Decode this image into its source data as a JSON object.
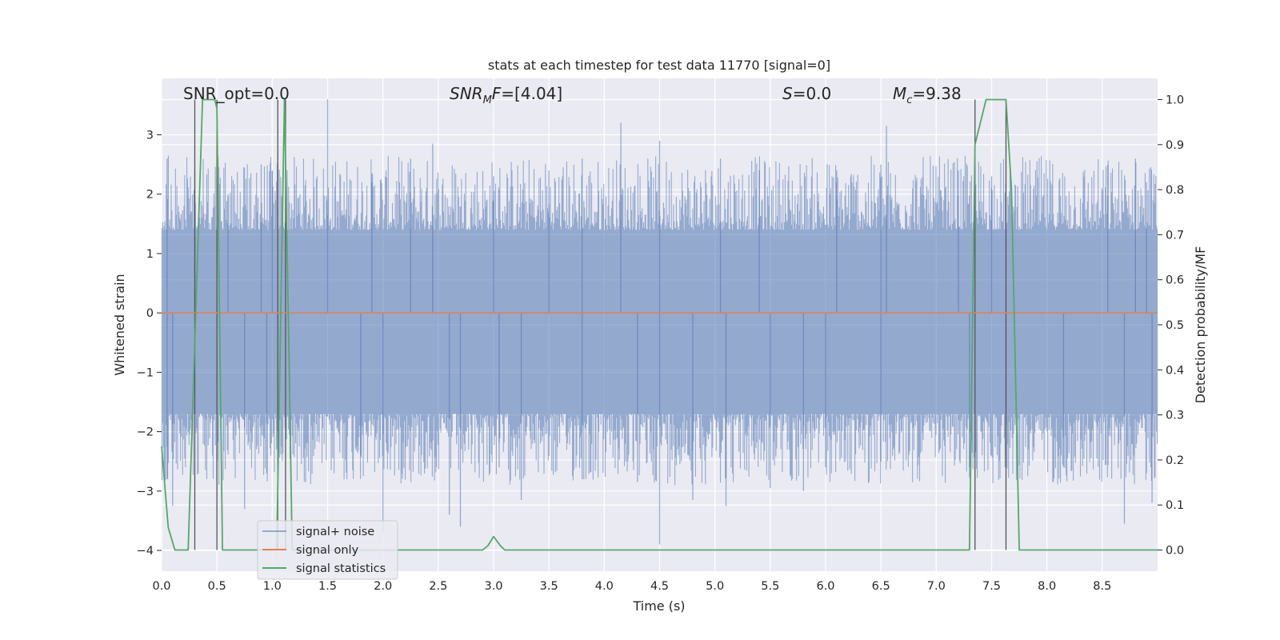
{
  "chart_data": {
    "type": "line",
    "title": "stats at each timestep for test data 11770 [signal=0]",
    "xlabel": "Time (s)",
    "ylabel": "Whitened strain",
    "y2label": "Detection probability/MF",
    "xlim": [
      0.0,
      9.0
    ],
    "ylim": [
      -4.35,
      3.95
    ],
    "y2lim": [
      -0.047,
      1.047
    ],
    "x_ticks": [
      "0.0",
      "0.5",
      "1.0",
      "1.5",
      "2.0",
      "2.5",
      "3.0",
      "3.5",
      "4.0",
      "4.5",
      "5.0",
      "5.5",
      "6.0",
      "6.5",
      "7.0",
      "7.5",
      "8.0",
      "8.5"
    ],
    "y_ticks": [
      "3",
      "2",
      "1",
      "0",
      "−1",
      "−2",
      "−3",
      "−4"
    ],
    "y2_ticks": [
      "1.0",
      "0.9",
      "0.8",
      "0.7",
      "0.6",
      "0.5",
      "0.4",
      "0.3",
      "0.2",
      "0.1",
      "0.0"
    ],
    "grid": true,
    "legend_position": "lower-left",
    "annotations": [
      {
        "text": "SNR_opt=0.0",
        "x": 0.19
      },
      {
        "text": "SNRMF=[4.04]",
        "x": 2.6
      },
      {
        "text": "S=0.0",
        "x": 5.6
      },
      {
        "text": "Mc=9.38",
        "x": 6.6
      }
    ],
    "series": [
      {
        "name": "signal+ noise",
        "color": "#4c72b0",
        "kind": "noise-band",
        "typical_range": [
          -1.7,
          1.4
        ],
        "spikes_up": [
          [
            0.05,
            2.6
          ],
          [
            0.3,
            2.4
          ],
          [
            0.6,
            2.0
          ],
          [
            0.9,
            2.5
          ],
          [
            1.0,
            2.4
          ],
          [
            1.5,
            3.6
          ],
          [
            1.9,
            2.2
          ],
          [
            2.25,
            2.6
          ],
          [
            2.45,
            2.85
          ],
          [
            3.0,
            2.3
          ],
          [
            3.5,
            2.4
          ],
          [
            3.8,
            2.6
          ],
          [
            4.15,
            3.2
          ],
          [
            4.5,
            2.9
          ],
          [
            5.05,
            2.6
          ],
          [
            5.4,
            2.4
          ],
          [
            6.1,
            2.4
          ],
          [
            6.5,
            2.5
          ],
          [
            6.55,
            3.15
          ],
          [
            7.2,
            2.4
          ],
          [
            7.5,
            2.3
          ],
          [
            8.55,
            2.5
          ],
          [
            8.8,
            2.6
          ],
          [
            8.9,
            2.2
          ]
        ],
        "spikes_down": [
          [
            0.05,
            -2.8
          ],
          [
            0.1,
            -3.25
          ],
          [
            0.75,
            -3.3
          ],
          [
            0.95,
            -2.7
          ],
          [
            1.8,
            -2.4
          ],
          [
            2.0,
            -3.7
          ],
          [
            2.6,
            -3.4
          ],
          [
            2.7,
            -3.6
          ],
          [
            3.05,
            -2.6
          ],
          [
            3.25,
            -3.15
          ],
          [
            3.8,
            -2.8
          ],
          [
            4.3,
            -2.85
          ],
          [
            4.5,
            -3.9
          ],
          [
            4.8,
            -3.15
          ],
          [
            5.1,
            -3.25
          ],
          [
            5.5,
            -2.95
          ],
          [
            5.8,
            -3.0
          ],
          [
            6.0,
            -2.6
          ],
          [
            6.5,
            -2.5
          ],
          [
            7.3,
            -2.6
          ],
          [
            8.15,
            -2.6
          ],
          [
            8.7,
            -3.55
          ],
          [
            8.95,
            -3.2
          ]
        ]
      },
      {
        "name": "signal only",
        "color": "#dd8452",
        "x": [
          0.0,
          9.0
        ],
        "y": [
          0.0,
          0.0
        ]
      },
      {
        "name": "signal statistics",
        "color": "#55a868",
        "axis": "right",
        "x": [
          0.0,
          0.06,
          0.12,
          0.24,
          0.37,
          0.48,
          0.5,
          0.55,
          1.04,
          1.11,
          1.15,
          1.18,
          2.9,
          2.95,
          3.0,
          3.06,
          3.1,
          7.3,
          7.35,
          7.45,
          7.63,
          7.68,
          7.75,
          9.0
        ],
        "y": [
          0.23,
          0.05,
          0.0,
          0.0,
          1.0,
          1.0,
          0.98,
          0.0,
          0.0,
          1.0,
          0.45,
          0.0,
          0.0,
          0.01,
          0.03,
          0.01,
          0.0,
          0.0,
          0.9,
          1.0,
          1.0,
          0.8,
          0.0,
          0.0
        ]
      }
    ],
    "vertical_markers": {
      "color": "#555555",
      "x": [
        0.3,
        0.5,
        1.05,
        1.12,
        7.35,
        7.63
      ]
    }
  }
}
